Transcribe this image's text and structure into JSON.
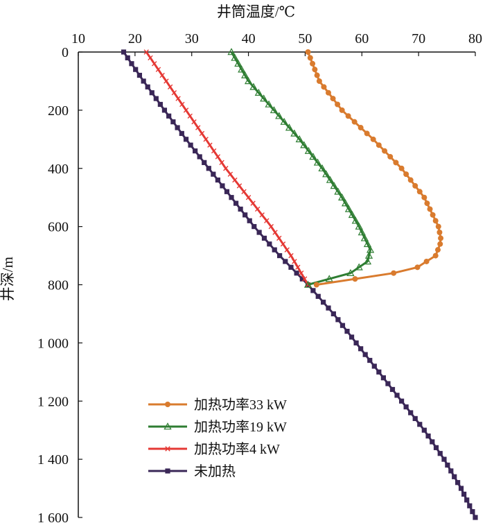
{
  "chart_data": {
    "type": "line",
    "title": "",
    "xlabel": "井筒温度/℃",
    "ylabel": "井深/m",
    "xlim": [
      10,
      80
    ],
    "ylim": [
      0,
      1600
    ],
    "x_axis_position": "top",
    "y_axis_inverted": true,
    "grid": false,
    "legend_position": "bottom-center",
    "x_ticks": [
      10,
      20,
      30,
      40,
      50,
      60,
      70,
      80
    ],
    "x_tick_labels": [
      "10",
      "20",
      "30",
      "40",
      "50",
      "60",
      "70",
      "80"
    ],
    "y_ticks": [
      0,
      200,
      400,
      600,
      800,
      1000,
      1200,
      1400,
      1600
    ],
    "y_tick_labels": [
      "0",
      "200",
      "400",
      "600",
      "800",
      "1 000",
      "1 200",
      "1 400",
      "1 600"
    ],
    "series": [
      {
        "name": "加热功率33 kW",
        "color": "#d97b2e",
        "marker": "circle",
        "points": [
          [
            50.5,
            0
          ],
          [
            52.5,
            100
          ],
          [
            56.5,
            200
          ],
          [
            62,
            300
          ],
          [
            67,
            400
          ],
          [
            71,
            500
          ],
          [
            73.5,
            600
          ],
          [
            74,
            650
          ],
          [
            73,
            700
          ],
          [
            69,
            750
          ],
          [
            52,
            800
          ]
        ]
      },
      {
        "name": "加热功率19 kW",
        "color": "#2e7d32",
        "marker": "triangle",
        "points": [
          [
            37,
            0
          ],
          [
            40,
            100
          ],
          [
            44.5,
            200
          ],
          [
            49,
            300
          ],
          [
            53,
            400
          ],
          [
            56.5,
            500
          ],
          [
            59.5,
            600
          ],
          [
            61.5,
            680
          ],
          [
            61,
            720
          ],
          [
            58,
            760
          ],
          [
            50.5,
            800
          ]
        ]
      },
      {
        "name": "加热功率4 kW",
        "color": "#e53935",
        "marker": "x",
        "points": [
          [
            22,
            0
          ],
          [
            25.5,
            100
          ],
          [
            29,
            200
          ],
          [
            32.5,
            300
          ],
          [
            36,
            400
          ],
          [
            40,
            500
          ],
          [
            44,
            600
          ],
          [
            47.5,
            700
          ],
          [
            50.5,
            800
          ]
        ]
      },
      {
        "name": "未加热",
        "color": "#3a2757",
        "marker": "square",
        "points": [
          [
            18,
            0
          ],
          [
            21.5,
            100
          ],
          [
            25.2,
            200
          ],
          [
            29,
            300
          ],
          [
            33,
            400
          ],
          [
            37,
            500
          ],
          [
            41,
            600
          ],
          [
            45.5,
            700
          ],
          [
            50.5,
            800
          ],
          [
            55,
            900
          ],
          [
            59,
            1000
          ],
          [
            63,
            1100
          ],
          [
            67,
            1200
          ],
          [
            71,
            1300
          ],
          [
            74.5,
            1400
          ],
          [
            77.5,
            1500
          ],
          [
            80,
            1600
          ]
        ]
      }
    ]
  }
}
